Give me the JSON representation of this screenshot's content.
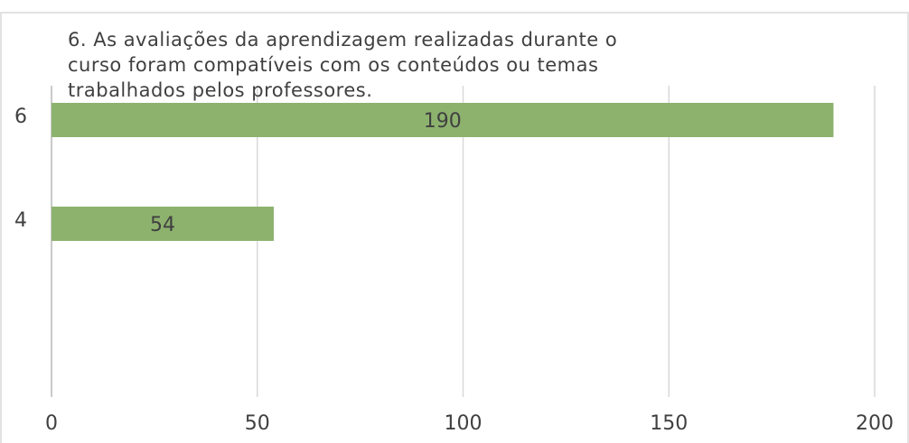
{
  "chart_data": {
    "type": "bar",
    "orientation": "horizontal",
    "title": [
      "6. As avaliações da aprendizagem realizadas durante o",
      "curso foram compatíveis com os conteúdos ou temas",
      "trabalhados pelos professores."
    ],
    "categories": [
      "6",
      "4",
      null
    ],
    "values": [
      190,
      54,
      null
    ],
    "color": "#8db26e",
    "xlim": [
      0,
      200
    ],
    "xticks": [
      0,
      50,
      100,
      150,
      200
    ],
    "grid": true
  }
}
